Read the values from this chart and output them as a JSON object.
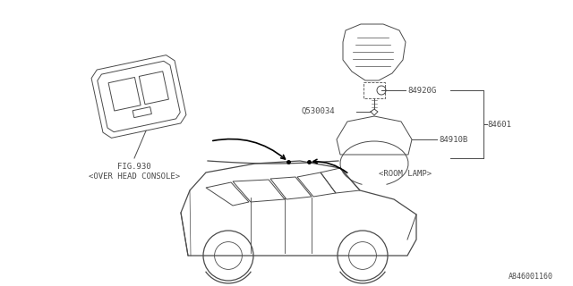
{
  "bg_color": "#ffffff",
  "line_color": "#4a4a4a",
  "text_color": "#4a4a4a",
  "label_84920G": "84920G",
  "label_84601": "84601",
  "label_Q530034": "Q530034",
  "label_84910B": "84910B",
  "label_room_lamp": "<ROOM LAMP>",
  "label_fig930": "FIG.930",
  "label_console": "<OVER HEAD CONSOLE>",
  "label_partnum": "A846001160",
  "font_size_labels": 6.5,
  "font_size_partnum": 6.0
}
